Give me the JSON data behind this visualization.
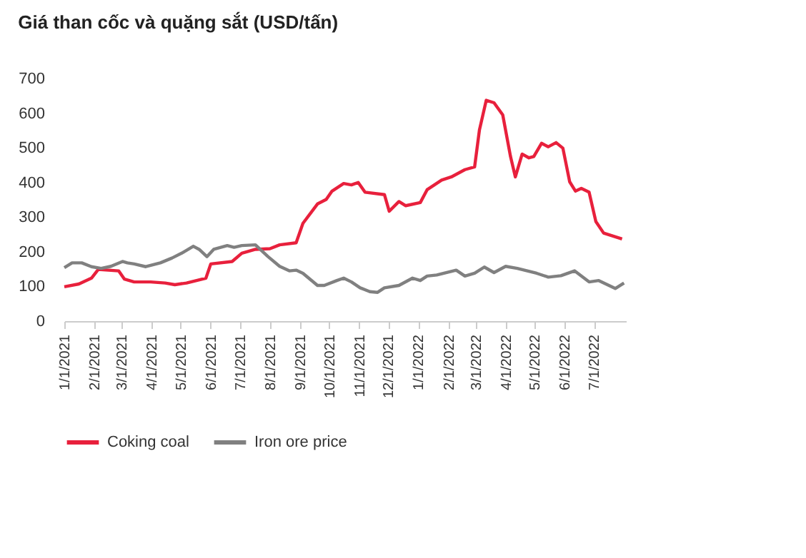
{
  "chart_data": {
    "type": "line",
    "title": "Giá than cốc và quặng sắt (USD/tấn)",
    "xlim": [
      "2021-01-01",
      "2022-08-03"
    ],
    "xticks": [
      {
        "value": "2021-01-01",
        "label": "1/1/2021"
      },
      {
        "value": "2021-02-01",
        "label": "2/1/2021"
      },
      {
        "value": "2021-03-01",
        "label": "3/1/2021"
      },
      {
        "value": "2021-04-01",
        "label": "4/1/2021"
      },
      {
        "value": "2021-05-01",
        "label": "5/1/2021"
      },
      {
        "value": "2021-06-01",
        "label": "6/1/2021"
      },
      {
        "value": "2021-07-01",
        "label": "7/1/2021"
      },
      {
        "value": "2021-08-01",
        "label": "8/1/2021"
      },
      {
        "value": "2021-09-01",
        "label": "9/1/2021"
      },
      {
        "value": "2021-10-01",
        "label": "10/1/2021"
      },
      {
        "value": "2021-11-01",
        "label": "11/1/2021"
      },
      {
        "value": "2021-12-01",
        "label": "12/1/2021"
      },
      {
        "value": "2022-01-01",
        "label": "1/1/2022"
      },
      {
        "value": "2022-02-01",
        "label": "2/1/2022"
      },
      {
        "value": "2022-03-01",
        "label": "3/1/2022"
      },
      {
        "value": "2022-04-01",
        "label": "4/1/2022"
      },
      {
        "value": "2022-05-01",
        "label": "5/1/2022"
      },
      {
        "value": "2022-06-01",
        "label": "6/1/2022"
      },
      {
        "value": "2022-07-01",
        "label": "7/1/2022"
      }
    ],
    "ylim": [
      0,
      700
    ],
    "yticks": [
      0,
      100,
      200,
      300,
      400,
      500,
      600,
      700
    ],
    "grid": false,
    "legend": "bottom",
    "line_style": "solid",
    "marker": "none",
    "series": [
      {
        "name": "Coking coal",
        "color": "#e8203c",
        "x": [
          "2021-01-01",
          "2021-01-16",
          "2021-01-29",
          "2021-02-05",
          "2021-02-26",
          "2021-03-04",
          "2021-03-14",
          "2021-03-31",
          "2021-04-15",
          "2021-04-25",
          "2021-05-07",
          "2021-05-27",
          "2021-06-01",
          "2021-06-23",
          "2021-07-03",
          "2021-07-17",
          "2021-08-01",
          "2021-08-11",
          "2021-08-28",
          "2021-09-04",
          "2021-09-19",
          "2021-09-28",
          "2021-10-04",
          "2021-10-16",
          "2021-10-24",
          "2021-10-31",
          "2021-11-07",
          "2021-11-27",
          "2021-12-02",
          "2021-12-12",
          "2021-12-19",
          "2022-01-03",
          "2022-01-10",
          "2022-01-25",
          "2022-02-04",
          "2022-02-18",
          "2022-02-28",
          "2022-03-05",
          "2022-03-12",
          "2022-03-20",
          "2022-03-29",
          "2022-04-06",
          "2022-04-11",
          "2022-04-18",
          "2022-04-25",
          "2022-04-30",
          "2022-05-08",
          "2022-05-15",
          "2022-05-23",
          "2022-05-30",
          "2022-06-06",
          "2022-06-12",
          "2022-06-18",
          "2022-06-26",
          "2022-07-03",
          "2022-07-11",
          "2022-07-30"
        ],
        "values": [
          99,
          107,
          124,
          149,
          145,
          121,
          113,
          113,
          110,
          105,
          110,
          124,
          165,
          172,
          196,
          207,
          209,
          220,
          226,
          282,
          338,
          351,
          375,
          397,
          393,
          400,
          372,
          365,
          317,
          345,
          333,
          342,
          379,
          407,
          416,
          437,
          445,
          552,
          637,
          630,
          595,
          475,
          416,
          482,
          471,
          475,
          513,
          503,
          515,
          499,
          402,
          375,
          383,
          372,
          287,
          254,
          237
        ]
      },
      {
        "name": "Iron ore price",
        "color": "#808080",
        "x": [
          "2021-01-01",
          "2021-01-09",
          "2021-01-19",
          "2021-01-29",
          "2021-02-08",
          "2021-02-18",
          "2021-03-02",
          "2021-03-07",
          "2021-03-14",
          "2021-03-26",
          "2021-04-10",
          "2021-04-22",
          "2021-05-02",
          "2021-05-14",
          "2021-05-20",
          "2021-05-28",
          "2021-06-04",
          "2021-06-18",
          "2021-06-25",
          "2021-07-03",
          "2021-07-17",
          "2021-07-30",
          "2021-08-11",
          "2021-08-21",
          "2021-08-28",
          "2021-09-04",
          "2021-09-19",
          "2021-09-26",
          "2021-10-09",
          "2021-10-16",
          "2021-10-24",
          "2021-11-02",
          "2021-11-12",
          "2021-11-20",
          "2021-11-27",
          "2021-12-12",
          "2021-12-26",
          "2022-01-03",
          "2022-01-10",
          "2022-01-20",
          "2022-02-09",
          "2022-02-18",
          "2022-02-28",
          "2022-03-10",
          "2022-03-20",
          "2022-04-01",
          "2022-04-13",
          "2022-05-03",
          "2022-05-15",
          "2022-05-28",
          "2022-06-11",
          "2022-06-26",
          "2022-07-06",
          "2022-07-23",
          "2022-08-01"
        ],
        "values": [
          154,
          168,
          168,
          157,
          152,
          158,
          172,
          168,
          165,
          157,
          168,
          182,
          196,
          216,
          207,
          186,
          207,
          218,
          213,
          218,
          220,
          186,
          158,
          145,
          147,
          138,
          103,
          103,
          117,
          124,
          113,
          96,
          85,
          83,
          96,
          103,
          124,
          117,
          130,
          133,
          147,
          130,
          138,
          156,
          140,
          158,
          152,
          138,
          127,
          131,
          145,
          113,
          117,
          94,
          110
        ]
      }
    ]
  }
}
